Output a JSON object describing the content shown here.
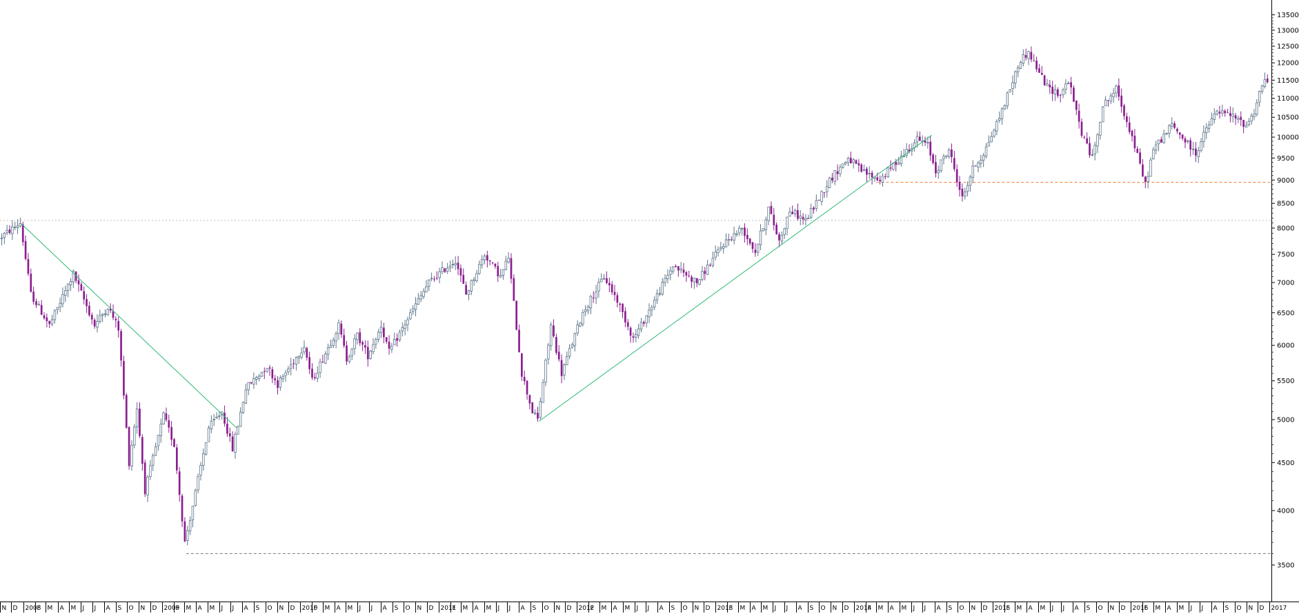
{
  "chart_data": {
    "type": "candlestick",
    "title": "",
    "xlabel": "",
    "ylabel": "",
    "y_scale": "log",
    "ylim": [
      3200,
      14000
    ],
    "y_ticks": [
      3500,
      4000,
      4500,
      5000,
      5500,
      6000,
      6500,
      7000,
      7500,
      8000,
      8500,
      9000,
      9500,
      10000,
      10500,
      11000,
      11500,
      12000,
      12500,
      13000,
      13500
    ],
    "x_range": [
      "2007-11-01",
      "2017-01-06"
    ],
    "x_ticks": [
      {
        "date": "2007-11-01",
        "label": "N"
      },
      {
        "date": "2007-12-01",
        "label": "D"
      },
      {
        "date": "2008-01-01",
        "label": "2008"
      },
      {
        "date": "2008-02-01",
        "label": "F"
      },
      {
        "date": "2008-03-01",
        "label": "M"
      },
      {
        "date": "2008-04-01",
        "label": "A"
      },
      {
        "date": "2008-05-01",
        "label": "M"
      },
      {
        "date": "2008-06-01",
        "label": "J"
      },
      {
        "date": "2008-07-01",
        "label": "J"
      },
      {
        "date": "2008-08-01",
        "label": "A"
      },
      {
        "date": "2008-09-01",
        "label": "S"
      },
      {
        "date": "2008-10-01",
        "label": "O"
      },
      {
        "date": "2008-11-01",
        "label": "N"
      },
      {
        "date": "2008-12-01",
        "label": "D"
      },
      {
        "date": "2009-01-01",
        "label": "2009"
      },
      {
        "date": "2009-02-01",
        "label": "F"
      },
      {
        "date": "2009-03-01",
        "label": "M"
      },
      {
        "date": "2009-04-01",
        "label": "A"
      },
      {
        "date": "2009-05-01",
        "label": "M"
      },
      {
        "date": "2009-06-01",
        "label": "J"
      },
      {
        "date": "2009-07-01",
        "label": "J"
      },
      {
        "date": "2009-08-01",
        "label": "A"
      },
      {
        "date": "2009-09-01",
        "label": "S"
      },
      {
        "date": "2009-10-01",
        "label": "O"
      },
      {
        "date": "2009-11-01",
        "label": "N"
      },
      {
        "date": "2009-12-01",
        "label": "D"
      },
      {
        "date": "2010-01-01",
        "label": "2010"
      },
      {
        "date": "2010-02-01",
        "label": "F"
      },
      {
        "date": "2010-03-01",
        "label": "M"
      },
      {
        "date": "2010-04-01",
        "label": "A"
      },
      {
        "date": "2010-05-01",
        "label": "M"
      },
      {
        "date": "2010-06-01",
        "label": "J"
      },
      {
        "date": "2010-07-01",
        "label": "J"
      },
      {
        "date": "2010-08-01",
        "label": "A"
      },
      {
        "date": "2010-09-01",
        "label": "S"
      },
      {
        "date": "2010-10-01",
        "label": "O"
      },
      {
        "date": "2010-11-01",
        "label": "N"
      },
      {
        "date": "2010-12-01",
        "label": "D"
      },
      {
        "date": "2011-01-01",
        "label": "2011"
      },
      {
        "date": "2011-02-01",
        "label": "F"
      },
      {
        "date": "2011-03-01",
        "label": "M"
      },
      {
        "date": "2011-04-01",
        "label": "A"
      },
      {
        "date": "2011-05-01",
        "label": "M"
      },
      {
        "date": "2011-06-01",
        "label": "J"
      },
      {
        "date": "2011-07-01",
        "label": "J"
      },
      {
        "date": "2011-08-01",
        "label": "A"
      },
      {
        "date": "2011-09-01",
        "label": "S"
      },
      {
        "date": "2011-10-01",
        "label": "O"
      },
      {
        "date": "2011-11-01",
        "label": "N"
      },
      {
        "date": "2011-12-01",
        "label": "D"
      },
      {
        "date": "2012-01-01",
        "label": "2012"
      },
      {
        "date": "2012-02-01",
        "label": "F"
      },
      {
        "date": "2012-03-01",
        "label": "M"
      },
      {
        "date": "2012-04-01",
        "label": "A"
      },
      {
        "date": "2012-05-01",
        "label": "M"
      },
      {
        "date": "2012-06-01",
        "label": "J"
      },
      {
        "date": "2012-07-01",
        "label": "J"
      },
      {
        "date": "2012-08-01",
        "label": "A"
      },
      {
        "date": "2012-09-01",
        "label": "S"
      },
      {
        "date": "2012-10-01",
        "label": "O"
      },
      {
        "date": "2012-11-01",
        "label": "N"
      },
      {
        "date": "2012-12-01",
        "label": "D"
      },
      {
        "date": "2013-01-01",
        "label": "2013"
      },
      {
        "date": "2013-02-01",
        "label": "F"
      },
      {
        "date": "2013-03-01",
        "label": "M"
      },
      {
        "date": "2013-04-01",
        "label": "A"
      },
      {
        "date": "2013-05-01",
        "label": "M"
      },
      {
        "date": "2013-06-01",
        "label": "J"
      },
      {
        "date": "2013-07-01",
        "label": "J"
      },
      {
        "date": "2013-08-01",
        "label": "A"
      },
      {
        "date": "2013-09-01",
        "label": "S"
      },
      {
        "date": "2013-10-01",
        "label": "O"
      },
      {
        "date": "2013-11-01",
        "label": "N"
      },
      {
        "date": "2013-12-01",
        "label": "D"
      },
      {
        "date": "2014-01-01",
        "label": "2014"
      },
      {
        "date": "2014-02-01",
        "label": "F"
      },
      {
        "date": "2014-03-01",
        "label": "M"
      },
      {
        "date": "2014-04-01",
        "label": "A"
      },
      {
        "date": "2014-05-01",
        "label": "M"
      },
      {
        "date": "2014-06-01",
        "label": "J"
      },
      {
        "date": "2014-07-01",
        "label": "J"
      },
      {
        "date": "2014-08-01",
        "label": "A"
      },
      {
        "date": "2014-09-01",
        "label": "S"
      },
      {
        "date": "2014-10-01",
        "label": "O"
      },
      {
        "date": "2014-11-01",
        "label": "N"
      },
      {
        "date": "2014-12-01",
        "label": "D"
      },
      {
        "date": "2015-01-01",
        "label": "2015"
      },
      {
        "date": "2015-02-01",
        "label": "F"
      },
      {
        "date": "2015-03-01",
        "label": "M"
      },
      {
        "date": "2015-04-01",
        "label": "A"
      },
      {
        "date": "2015-05-01",
        "label": "M"
      },
      {
        "date": "2015-06-01",
        "label": "J"
      },
      {
        "date": "2015-07-01",
        "label": "J"
      },
      {
        "date": "2015-08-01",
        "label": "A"
      },
      {
        "date": "2015-09-01",
        "label": "S"
      },
      {
        "date": "2015-10-01",
        "label": "O"
      },
      {
        "date": "2015-11-01",
        "label": "N"
      },
      {
        "date": "2015-12-01",
        "label": "D"
      },
      {
        "date": "2016-01-01",
        "label": "2016"
      },
      {
        "date": "2016-02-01",
        "label": "F"
      },
      {
        "date": "2016-03-01",
        "label": "M"
      },
      {
        "date": "2016-04-01",
        "label": "A"
      },
      {
        "date": "2016-05-01",
        "label": "M"
      },
      {
        "date": "2016-06-01",
        "label": "J"
      },
      {
        "date": "2016-07-01",
        "label": "J"
      },
      {
        "date": "2016-08-01",
        "label": "A"
      },
      {
        "date": "2016-09-01",
        "label": "S"
      },
      {
        "date": "2016-10-01",
        "label": "O"
      },
      {
        "date": "2016-11-01",
        "label": "N"
      },
      {
        "date": "2016-12-01",
        "label": "D"
      },
      {
        "date": "2017-01-01",
        "label": "2017"
      }
    ],
    "price_path": [
      [
        "2007-11-02",
        7800
      ],
      [
        "2007-12-28",
        8100
      ],
      [
        "2008-01-25",
        6800
      ],
      [
        "2008-03-14",
        6300
      ],
      [
        "2008-05-16",
        7150
      ],
      [
        "2008-07-11",
        6300
      ],
      [
        "2008-08-15",
        6600
      ],
      [
        "2008-09-12",
        6250
      ],
      [
        "2008-10-10",
        4500
      ],
      [
        "2008-10-31",
        5150
      ],
      [
        "2008-11-21",
        4200
      ],
      [
        "2009-01-09",
        5050
      ],
      [
        "2009-02-06",
        4700
      ],
      [
        "2009-03-06",
        3700
      ],
      [
        "2009-03-27",
        4050
      ],
      [
        "2009-05-08",
        4900
      ],
      [
        "2009-06-12",
        5100
      ],
      [
        "2009-07-10",
        4650
      ],
      [
        "2009-08-14",
        5400
      ],
      [
        "2009-10-09",
        5700
      ],
      [
        "2009-11-06",
        5450
      ],
      [
        "2010-01-15",
        6000
      ],
      [
        "2010-02-05",
        5500
      ],
      [
        "2010-04-16",
        6300
      ],
      [
        "2010-05-07",
        5800
      ],
      [
        "2010-06-04",
        6150
      ],
      [
        "2010-07-02",
        5850
      ],
      [
        "2010-08-06",
        6300
      ],
      [
        "2010-08-27",
        5900
      ],
      [
        "2010-10-29",
        6550
      ],
      [
        "2010-12-10",
        7000
      ],
      [
        "2011-02-18",
        7400
      ],
      [
        "2011-03-18",
        6800
      ],
      [
        "2011-05-06",
        7500
      ],
      [
        "2011-06-17",
        7100
      ],
      [
        "2011-07-08",
        7450
      ],
      [
        "2011-08-12",
        5600
      ],
      [
        "2011-09-09",
        5100
      ],
      [
        "2011-09-23",
        5000
      ],
      [
        "2011-10-28",
        6300
      ],
      [
        "2011-11-25",
        5600
      ],
      [
        "2012-01-20",
        6500
      ],
      [
        "2012-03-16",
        7100
      ],
      [
        "2012-04-20",
        6700
      ],
      [
        "2012-06-01",
        6100
      ],
      [
        "2012-06-22",
        6300
      ],
      [
        "2012-09-14",
        7300
      ],
      [
        "2012-11-16",
        7000
      ],
      [
        "2013-01-25",
        7700
      ],
      [
        "2013-03-15",
        8000
      ],
      [
        "2013-04-19",
        7550
      ],
      [
        "2013-05-24",
        8400
      ],
      [
        "2013-06-21",
        7750
      ],
      [
        "2013-07-19",
        8350
      ],
      [
        "2013-08-30",
        8150
      ],
      [
        "2013-11-01",
        9000
      ],
      [
        "2013-12-20",
        9500
      ],
      [
        "2014-01-24",
        9200
      ],
      [
        "2014-03-14",
        9000
      ],
      [
        "2014-06-20",
        9950
      ],
      [
        "2014-07-18",
        9800
      ],
      [
        "2014-08-08",
        9200
      ],
      [
        "2014-09-12",
        9700
      ],
      [
        "2014-10-17",
        8600
      ],
      [
        "2014-11-14",
        9250
      ],
      [
        "2014-12-12",
        9600
      ],
      [
        "2015-01-23",
        10500
      ],
      [
        "2015-03-20",
        12100
      ],
      [
        "2015-04-10",
        12300
      ],
      [
        "2015-05-29",
        11300
      ],
      [
        "2015-07-03",
        11100
      ],
      [
        "2015-07-24",
        11500
      ],
      [
        "2015-08-28",
        10100
      ],
      [
        "2015-09-25",
        9500
      ],
      [
        "2015-10-23",
        10800
      ],
      [
        "2015-11-27",
        11250
      ],
      [
        "2016-01-08",
        10000
      ],
      [
        "2016-02-12",
        8900
      ],
      [
        "2016-03-04",
        9700
      ],
      [
        "2016-04-22",
        10300
      ],
      [
        "2016-06-24",
        9600
      ],
      [
        "2016-07-22",
        10200
      ],
      [
        "2016-08-19",
        10650
      ],
      [
        "2016-09-23",
        10550
      ],
      [
        "2016-11-04",
        10300
      ],
      [
        "2016-11-25",
        10650
      ],
      [
        "2016-12-16",
        11400
      ],
      [
        "2017-01-06",
        11550
      ]
    ],
    "annotations": [
      {
        "type": "trendline",
        "color": "#2eb872",
        "from": [
          "2007-12-28",
          8080
        ],
        "to": [
          "2009-07-17",
          4900
        ]
      },
      {
        "type": "trendline",
        "color": "#2eb872",
        "from": [
          "2011-09-23",
          4980
        ],
        "to": [
          "2014-07-25",
          10050
        ]
      },
      {
        "type": "hline",
        "color": "#f07a30",
        "from_date": "2014-03-01",
        "value": 8950,
        "style": "dashed"
      },
      {
        "type": "hline",
        "color": "#b8b8b8",
        "from_date": "2007-11-01",
        "value": 8150,
        "style": "dotted"
      },
      {
        "type": "hline",
        "color": "#777777",
        "from_date": "2009-03-06",
        "value": 3600,
        "style": "dashed"
      }
    ],
    "colors": {
      "up": "#ffffff",
      "up_outline": "#5a7388",
      "down": "#8b1e8f",
      "axis": "#000000"
    }
  }
}
